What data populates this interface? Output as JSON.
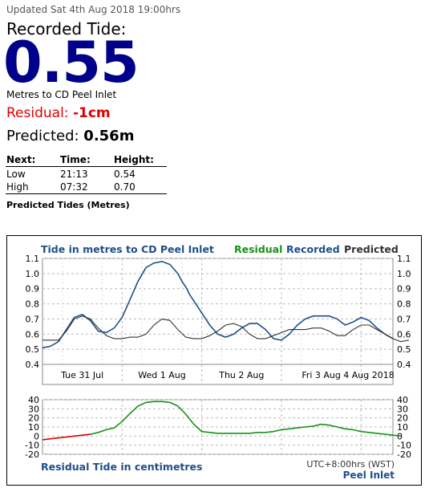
{
  "header": {
    "updated": "Updated Sat 4th Aug 2018 19:00hrs",
    "recorded_label": "Recorded Tide:",
    "recorded_value": "0.55",
    "datum": "Metres to CD Peel Inlet",
    "residual_label": "Residual: ",
    "residual_value": "-1cm",
    "predicted_label": "Predicted: ",
    "predicted_value": "0.56m"
  },
  "next_table": {
    "headers": [
      "Next:",
      "Time:",
      "Height:"
    ],
    "rows": [
      [
        "Low",
        "21:13",
        "0.54"
      ],
      [
        "High",
        "07:32",
        "0.70"
      ]
    ],
    "caption": "Predicted Tides (Metres)"
  },
  "colors": {
    "recorded": "#1f4e8c",
    "predicted": "#333333",
    "residual_green": "#169216",
    "residual_red": "#e00000",
    "title_blue": "#1f4e8c"
  },
  "chart_data": [
    {
      "type": "line",
      "title": "Tide in metres to CD Peel Inlet",
      "legend": [
        "Residual",
        "Recorded",
        "Predicted"
      ],
      "legend_placement": "top-right",
      "ylim": [
        0.4,
        1.1
      ],
      "yticks": [
        "1.1",
        "1.0",
        "0.9",
        "0.8",
        "0.7",
        "0.6",
        "0.5",
        "0.4"
      ],
      "xlim": [
        0,
        4.4
      ],
      "xticks": [
        {
          "x": 0.5,
          "label": "Tue 31 Jul"
        },
        {
          "x": 1.5,
          "label": "Wed 1 Aug"
        },
        {
          "x": 2.5,
          "label": "Thu 2 Aug"
        },
        {
          "x": 3.5,
          "label": "Fri 3 Aug"
        },
        {
          "x": 4.4,
          "label": "4 Aug 2018"
        }
      ],
      "grid": true,
      "series": [
        {
          "name": "Recorded",
          "x": [
            0,
            0.1,
            0.2,
            0.3,
            0.4,
            0.5,
            0.6,
            0.7,
            0.8,
            0.9,
            1.0,
            1.1,
            1.2,
            1.3,
            1.4,
            1.5,
            1.6,
            1.7,
            1.75,
            1.8,
            1.85,
            1.9,
            2.0,
            2.1,
            2.2,
            2.3,
            2.4,
            2.5,
            2.6,
            2.7,
            2.8,
            2.9,
            3.0,
            3.1,
            3.2,
            3.3,
            3.4,
            3.5,
            3.6,
            3.7,
            3.8,
            3.9,
            4.0,
            4.1,
            4.2,
            4.3,
            4.4
          ],
          "y": [
            0.51,
            0.52,
            0.55,
            0.63,
            0.71,
            0.73,
            0.69,
            0.62,
            0.61,
            0.64,
            0.71,
            0.83,
            0.95,
            1.04,
            1.07,
            1.08,
            1.06,
            1.0,
            0.95,
            0.91,
            0.86,
            0.82,
            0.74,
            0.66,
            0.6,
            0.58,
            0.6,
            0.64,
            0.67,
            0.67,
            0.63,
            0.57,
            0.56,
            0.6,
            0.66,
            0.7,
            0.72,
            0.72,
            0.72,
            0.7,
            0.66,
            0.68,
            0.71,
            0.69,
            0.64,
            0.6,
            0.57
          ]
        },
        {
          "name": "Predicted",
          "x": [
            0,
            0.1,
            0.2,
            0.3,
            0.4,
            0.5,
            0.6,
            0.7,
            0.8,
            0.9,
            1.0,
            1.1,
            1.2,
            1.3,
            1.4,
            1.5,
            1.6,
            1.7,
            1.8,
            1.9,
            2.0,
            2.1,
            2.2,
            2.3,
            2.4,
            2.5,
            2.6,
            2.7,
            2.8,
            2.9,
            3.0,
            3.1,
            3.2,
            3.3,
            3.4,
            3.5,
            3.6,
            3.7,
            3.8,
            3.9,
            4.0,
            4.1,
            4.2,
            4.3,
            4.4,
            4.5,
            4.6
          ],
          "y": [
            0.56,
            0.56,
            0.56,
            0.62,
            0.7,
            0.72,
            0.7,
            0.64,
            0.59,
            0.57,
            0.57,
            0.58,
            0.58,
            0.6,
            0.66,
            0.7,
            0.69,
            0.63,
            0.58,
            0.57,
            0.57,
            0.59,
            0.62,
            0.66,
            0.67,
            0.65,
            0.6,
            0.57,
            0.57,
            0.59,
            0.61,
            0.63,
            0.63,
            0.63,
            0.64,
            0.64,
            0.62,
            0.59,
            0.59,
            0.63,
            0.66,
            0.66,
            0.63,
            0.6,
            0.57,
            0.55,
            0.56
          ]
        }
      ]
    },
    {
      "type": "line",
      "title": "Residual Tide in centimetres",
      "ylim": [
        -20,
        40
      ],
      "yticks": [
        "40",
        "30",
        "20",
        "10",
        "0",
        "-10",
        "-20"
      ],
      "xlim": [
        0,
        4.4
      ],
      "grid": true,
      "footer": [
        "UTC+8:00hrs (WST)",
        "Peel Inlet"
      ],
      "series": [
        {
          "name": "Residual",
          "x": [
            0,
            0.1,
            0.2,
            0.3,
            0.4,
            0.5,
            0.6,
            0.7,
            0.8,
            0.9,
            1.0,
            1.1,
            1.2,
            1.3,
            1.4,
            1.5,
            1.6,
            1.7,
            1.8,
            1.9,
            2.0,
            2.1,
            2.2,
            2.3,
            2.4,
            2.5,
            2.6,
            2.7,
            2.8,
            2.9,
            3.0,
            3.1,
            3.2,
            3.3,
            3.4,
            3.5,
            3.6,
            3.7,
            3.8,
            3.9,
            4.0,
            4.1,
            4.2,
            4.3,
            4.4,
            4.5
          ],
          "y": [
            -4,
            -3,
            -2,
            -1,
            0,
            1,
            2,
            4,
            7,
            9,
            16,
            25,
            33,
            37,
            38,
            38,
            37,
            33,
            24,
            13,
            5,
            4,
            3,
            3,
            3,
            3,
            3,
            4,
            4,
            5,
            7,
            8,
            9,
            10,
            11,
            13,
            12,
            10,
            8,
            7,
            5,
            4,
            3,
            2,
            1,
            0
          ]
        }
      ]
    }
  ]
}
